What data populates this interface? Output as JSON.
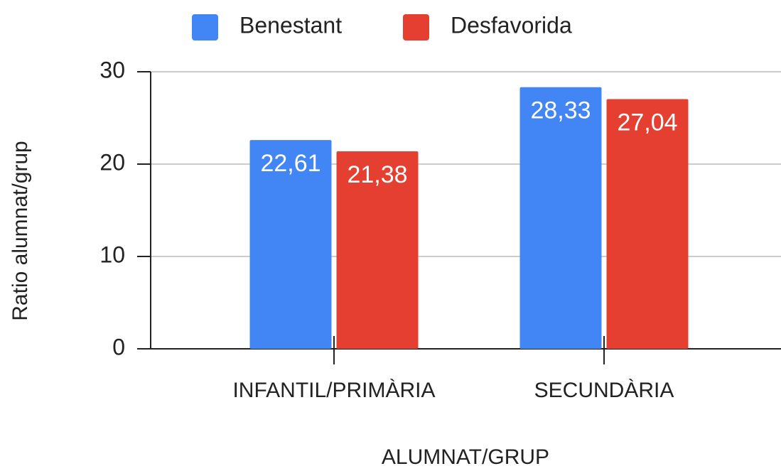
{
  "chart_data": {
    "type": "bar",
    "categories": [
      "INFANTIL/PRIMÀRIA",
      "SECUNDÀRIA"
    ],
    "series": [
      {
        "name": "Benestant",
        "color": "#4285f4",
        "values": [
          22.61,
          28.33
        ],
        "value_labels": [
          "22,61",
          "28,33"
        ]
      },
      {
        "name": "Desfavorida",
        "color": "#e53f32",
        "values": [
          21.38,
          27.04
        ],
        "value_labels": [
          "21,38",
          "27,04"
        ]
      }
    ],
    "xlabel": "ALUMNAT/GRUP",
    "ylabel": "Ratio alumnat/grup",
    "ylim": [
      0,
      30
    ],
    "yticks": [
      0,
      10,
      20,
      30
    ],
    "grid": true,
    "legend": "top"
  }
}
